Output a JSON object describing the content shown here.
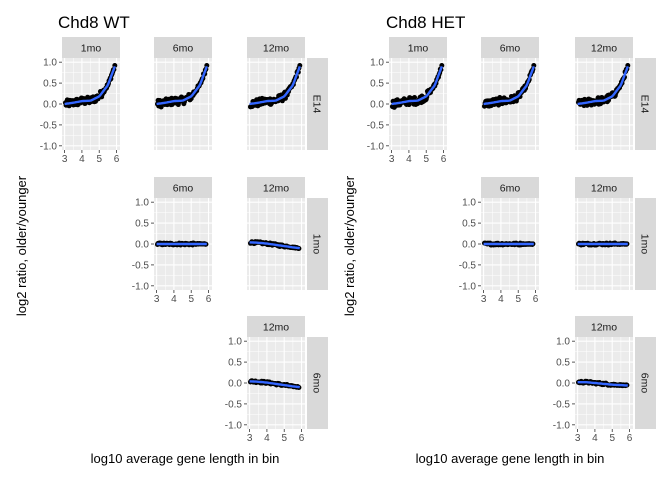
{
  "chart_data": [
    {
      "type": "scatter",
      "title": "Chd8 WT",
      "xlabel": "log10 average gene length in bin",
      "ylabel": "log2 ratio, older/younger",
      "xlim": [
        3,
        6
      ],
      "ylim": [
        -1.0,
        1.0
      ],
      "xticks": [
        "3",
        "4",
        "5",
        "6"
      ],
      "yticks": [
        "1.0",
        "0.5",
        "0.0",
        "-0.5",
        "-1.0"
      ],
      "grid": true,
      "smooth_color": "#3366FF",
      "point_color": "#000000",
      "panels": [
        {
          "col": "1mo",
          "row": "E14",
          "show_x_ticks": true,
          "show_y_ticks": true,
          "trend": {
            "x": [
              3.0,
              3.5,
              4.0,
              4.5,
              5.0,
              5.5,
              5.9
            ],
            "y": [
              0.0,
              0.03,
              0.07,
              0.08,
              0.18,
              0.45,
              0.9
            ]
          }
        },
        {
          "col": "6mo",
          "row": "E14",
          "show_x_ticks": false,
          "show_y_ticks": false,
          "trend": {
            "x": [
              3.0,
              3.5,
              4.0,
              4.5,
              5.0,
              5.5,
              5.9
            ],
            "y": [
              0.0,
              0.03,
              0.07,
              0.08,
              0.18,
              0.45,
              0.9
            ]
          }
        },
        {
          "col": "12mo",
          "row": "E14",
          "show_x_ticks": false,
          "show_y_ticks": false,
          "trend": {
            "x": [
              3.0,
              3.5,
              4.0,
              4.5,
              5.0,
              5.5,
              5.9
            ],
            "y": [
              0.0,
              0.03,
              0.07,
              0.08,
              0.18,
              0.45,
              0.9
            ]
          }
        },
        {
          "col": "6mo",
          "row": "1mo",
          "show_x_ticks": true,
          "show_y_ticks": true,
          "trend": {
            "x": [
              3.0,
              3.5,
              4.0,
              4.5,
              5.0,
              5.5,
              5.9
            ],
            "y": [
              0.0,
              0.0,
              0.0,
              0.0,
              0.0,
              0.0,
              0.0
            ]
          }
        },
        {
          "col": "12mo",
          "row": "1mo",
          "show_x_ticks": false,
          "show_y_ticks": false,
          "trend": {
            "x": [
              3.0,
              3.5,
              4.0,
              4.5,
              5.0,
              5.5,
              5.9
            ],
            "y": [
              0.04,
              0.03,
              0.01,
              -0.02,
              -0.05,
              -0.08,
              -0.1
            ]
          }
        },
        {
          "col": "12mo",
          "row": "6mo",
          "show_x_ticks": true,
          "show_y_ticks": true,
          "trend": {
            "x": [
              3.0,
              3.5,
              4.0,
              4.5,
              5.0,
              5.5,
              5.9
            ],
            "y": [
              0.04,
              0.03,
              0.01,
              -0.02,
              -0.05,
              -0.08,
              -0.1
            ]
          }
        }
      ]
    },
    {
      "type": "scatter",
      "title": "Chd8 HET",
      "xlabel": "log10 average gene length in bin",
      "ylabel": "log2 ratio, older/younger",
      "xlim": [
        3,
        6
      ],
      "ylim": [
        -1.0,
        1.0
      ],
      "xticks": [
        "3",
        "4",
        "5",
        "6"
      ],
      "yticks": [
        "1.0",
        "0.5",
        "0.0",
        "-0.5",
        "-1.0"
      ],
      "grid": true,
      "smooth_color": "#3366FF",
      "point_color": "#000000",
      "panels": [
        {
          "col": "1mo",
          "row": "E14",
          "show_x_ticks": true,
          "show_y_ticks": true,
          "trend": {
            "x": [
              3.0,
              3.5,
              4.0,
              4.5,
              5.0,
              5.5,
              5.9
            ],
            "y": [
              0.0,
              0.03,
              0.07,
              0.08,
              0.18,
              0.45,
              0.9
            ]
          }
        },
        {
          "col": "6mo",
          "row": "E14",
          "show_x_ticks": false,
          "show_y_ticks": false,
          "trend": {
            "x": [
              3.0,
              3.5,
              4.0,
              4.5,
              5.0,
              5.5,
              5.9
            ],
            "y": [
              0.0,
              0.03,
              0.07,
              0.08,
              0.18,
              0.45,
              0.9
            ]
          }
        },
        {
          "col": "12mo",
          "row": "E14",
          "show_x_ticks": false,
          "show_y_ticks": false,
          "trend": {
            "x": [
              3.0,
              3.5,
              4.0,
              4.5,
              5.0,
              5.5,
              5.9
            ],
            "y": [
              0.0,
              0.03,
              0.07,
              0.08,
              0.18,
              0.45,
              0.9
            ]
          }
        },
        {
          "col": "6mo",
          "row": "1mo",
          "show_x_ticks": true,
          "show_y_ticks": true,
          "trend": {
            "x": [
              3.0,
              3.5,
              4.0,
              4.5,
              5.0,
              5.5,
              5.9
            ],
            "y": [
              0.0,
              0.0,
              0.0,
              0.0,
              0.0,
              0.0,
              0.0
            ]
          }
        },
        {
          "col": "12mo",
          "row": "1mo",
          "show_x_ticks": false,
          "show_y_ticks": false,
          "trend": {
            "x": [
              3.0,
              3.5,
              4.0,
              4.5,
              5.0,
              5.5,
              5.9
            ],
            "y": [
              0.0,
              0.0,
              0.0,
              0.0,
              0.0,
              0.0,
              0.0
            ]
          }
        },
        {
          "col": "12mo",
          "row": "6mo",
          "show_x_ticks": true,
          "show_y_ticks": true,
          "trend": {
            "x": [
              3.0,
              3.5,
              4.0,
              4.5,
              5.0,
              5.5,
              5.9
            ],
            "y": [
              0.02,
              0.02,
              0.0,
              -0.02,
              -0.04,
              -0.05,
              -0.06
            ]
          }
        }
      ]
    }
  ]
}
